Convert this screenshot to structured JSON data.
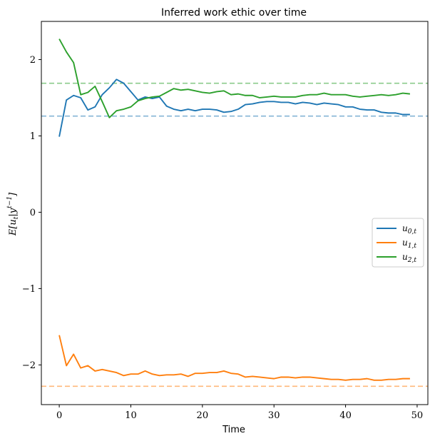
{
  "chart_data": {
    "type": "line",
    "title": "Inferred work ethic over time",
    "xlabel": "Time",
    "ylabel": "E[u_t|y^{t-1}]",
    "xlim": [
      -2.5,
      51.5
    ],
    "ylim": [
      -2.52,
      2.5
    ],
    "xticks": [
      0,
      10,
      20,
      30,
      40,
      50
    ],
    "yticks": [
      -2,
      -1,
      0,
      1,
      2
    ],
    "xtick_labels": [
      "0",
      "10",
      "20",
      "30",
      "40",
      "50"
    ],
    "ytick_labels": [
      "−2",
      "−1",
      "0",
      "1",
      "2"
    ],
    "legend_position": "center-right",
    "grid": false,
    "x": [
      0,
      1,
      2,
      3,
      4,
      5,
      6,
      7,
      8,
      9,
      10,
      11,
      12,
      13,
      14,
      15,
      16,
      17,
      18,
      19,
      20,
      21,
      22,
      23,
      24,
      25,
      26,
      27,
      28,
      29,
      30,
      31,
      32,
      33,
      34,
      35,
      36,
      37,
      38,
      39,
      40,
      41,
      42,
      43,
      44,
      45,
      46,
      47,
      48,
      49
    ],
    "series": [
      {
        "name": "u_{0,t}",
        "color": "#1f77b4",
        "values": [
          0.99,
          1.47,
          1.53,
          1.5,
          1.34,
          1.38,
          1.54,
          1.63,
          1.74,
          1.69,
          1.58,
          1.47,
          1.51,
          1.49,
          1.51,
          1.39,
          1.35,
          1.33,
          1.35,
          1.33,
          1.35,
          1.35,
          1.34,
          1.31,
          1.32,
          1.35,
          1.41,
          1.42,
          1.44,
          1.45,
          1.45,
          1.44,
          1.44,
          1.42,
          1.44,
          1.43,
          1.41,
          1.43,
          1.42,
          1.41,
          1.38,
          1.38,
          1.35,
          1.34,
          1.34,
          1.31,
          1.3,
          1.3,
          1.28,
          1.28
        ]
      },
      {
        "name": "u_{1,t}",
        "color": "#ff7f0e",
        "values": [
          -1.61,
          -2.01,
          -1.86,
          -2.04,
          -2.01,
          -2.08,
          -2.06,
          -2.08,
          -2.1,
          -2.14,
          -2.12,
          -2.12,
          -2.08,
          -2.12,
          -2.14,
          -2.13,
          -2.13,
          -2.12,
          -2.15,
          -2.11,
          -2.11,
          -2.1,
          -2.1,
          -2.08,
          -2.11,
          -2.12,
          -2.16,
          -2.15,
          -2.16,
          -2.17,
          -2.18,
          -2.16,
          -2.16,
          -2.17,
          -2.16,
          -2.16,
          -2.17,
          -2.18,
          -2.19,
          -2.19,
          -2.2,
          -2.19,
          -2.19,
          -2.18,
          -2.2,
          -2.2,
          -2.19,
          -2.19,
          -2.18,
          -2.18
        ]
      },
      {
        "name": "u_{2,t}",
        "color": "#2ca02c",
        "values": [
          2.27,
          2.1,
          1.96,
          1.54,
          1.57,
          1.65,
          1.45,
          1.24,
          1.33,
          1.35,
          1.38,
          1.46,
          1.49,
          1.51,
          1.52,
          1.57,
          1.62,
          1.6,
          1.61,
          1.59,
          1.57,
          1.56,
          1.58,
          1.59,
          1.54,
          1.55,
          1.53,
          1.53,
          1.5,
          1.51,
          1.52,
          1.51,
          1.51,
          1.51,
          1.53,
          1.54,
          1.54,
          1.56,
          1.54,
          1.54,
          1.54,
          1.52,
          1.51,
          1.52,
          1.53,
          1.54,
          1.53,
          1.54,
          1.56,
          1.55
        ]
      }
    ],
    "reference_lines": [
      {
        "y": 1.26,
        "color": "#1f77b4",
        "style": "dashed"
      },
      {
        "y": -2.28,
        "color": "#ff7f0e",
        "style": "dashed"
      },
      {
        "y": 1.69,
        "color": "#2ca02c",
        "style": "dashed"
      }
    ]
  }
}
